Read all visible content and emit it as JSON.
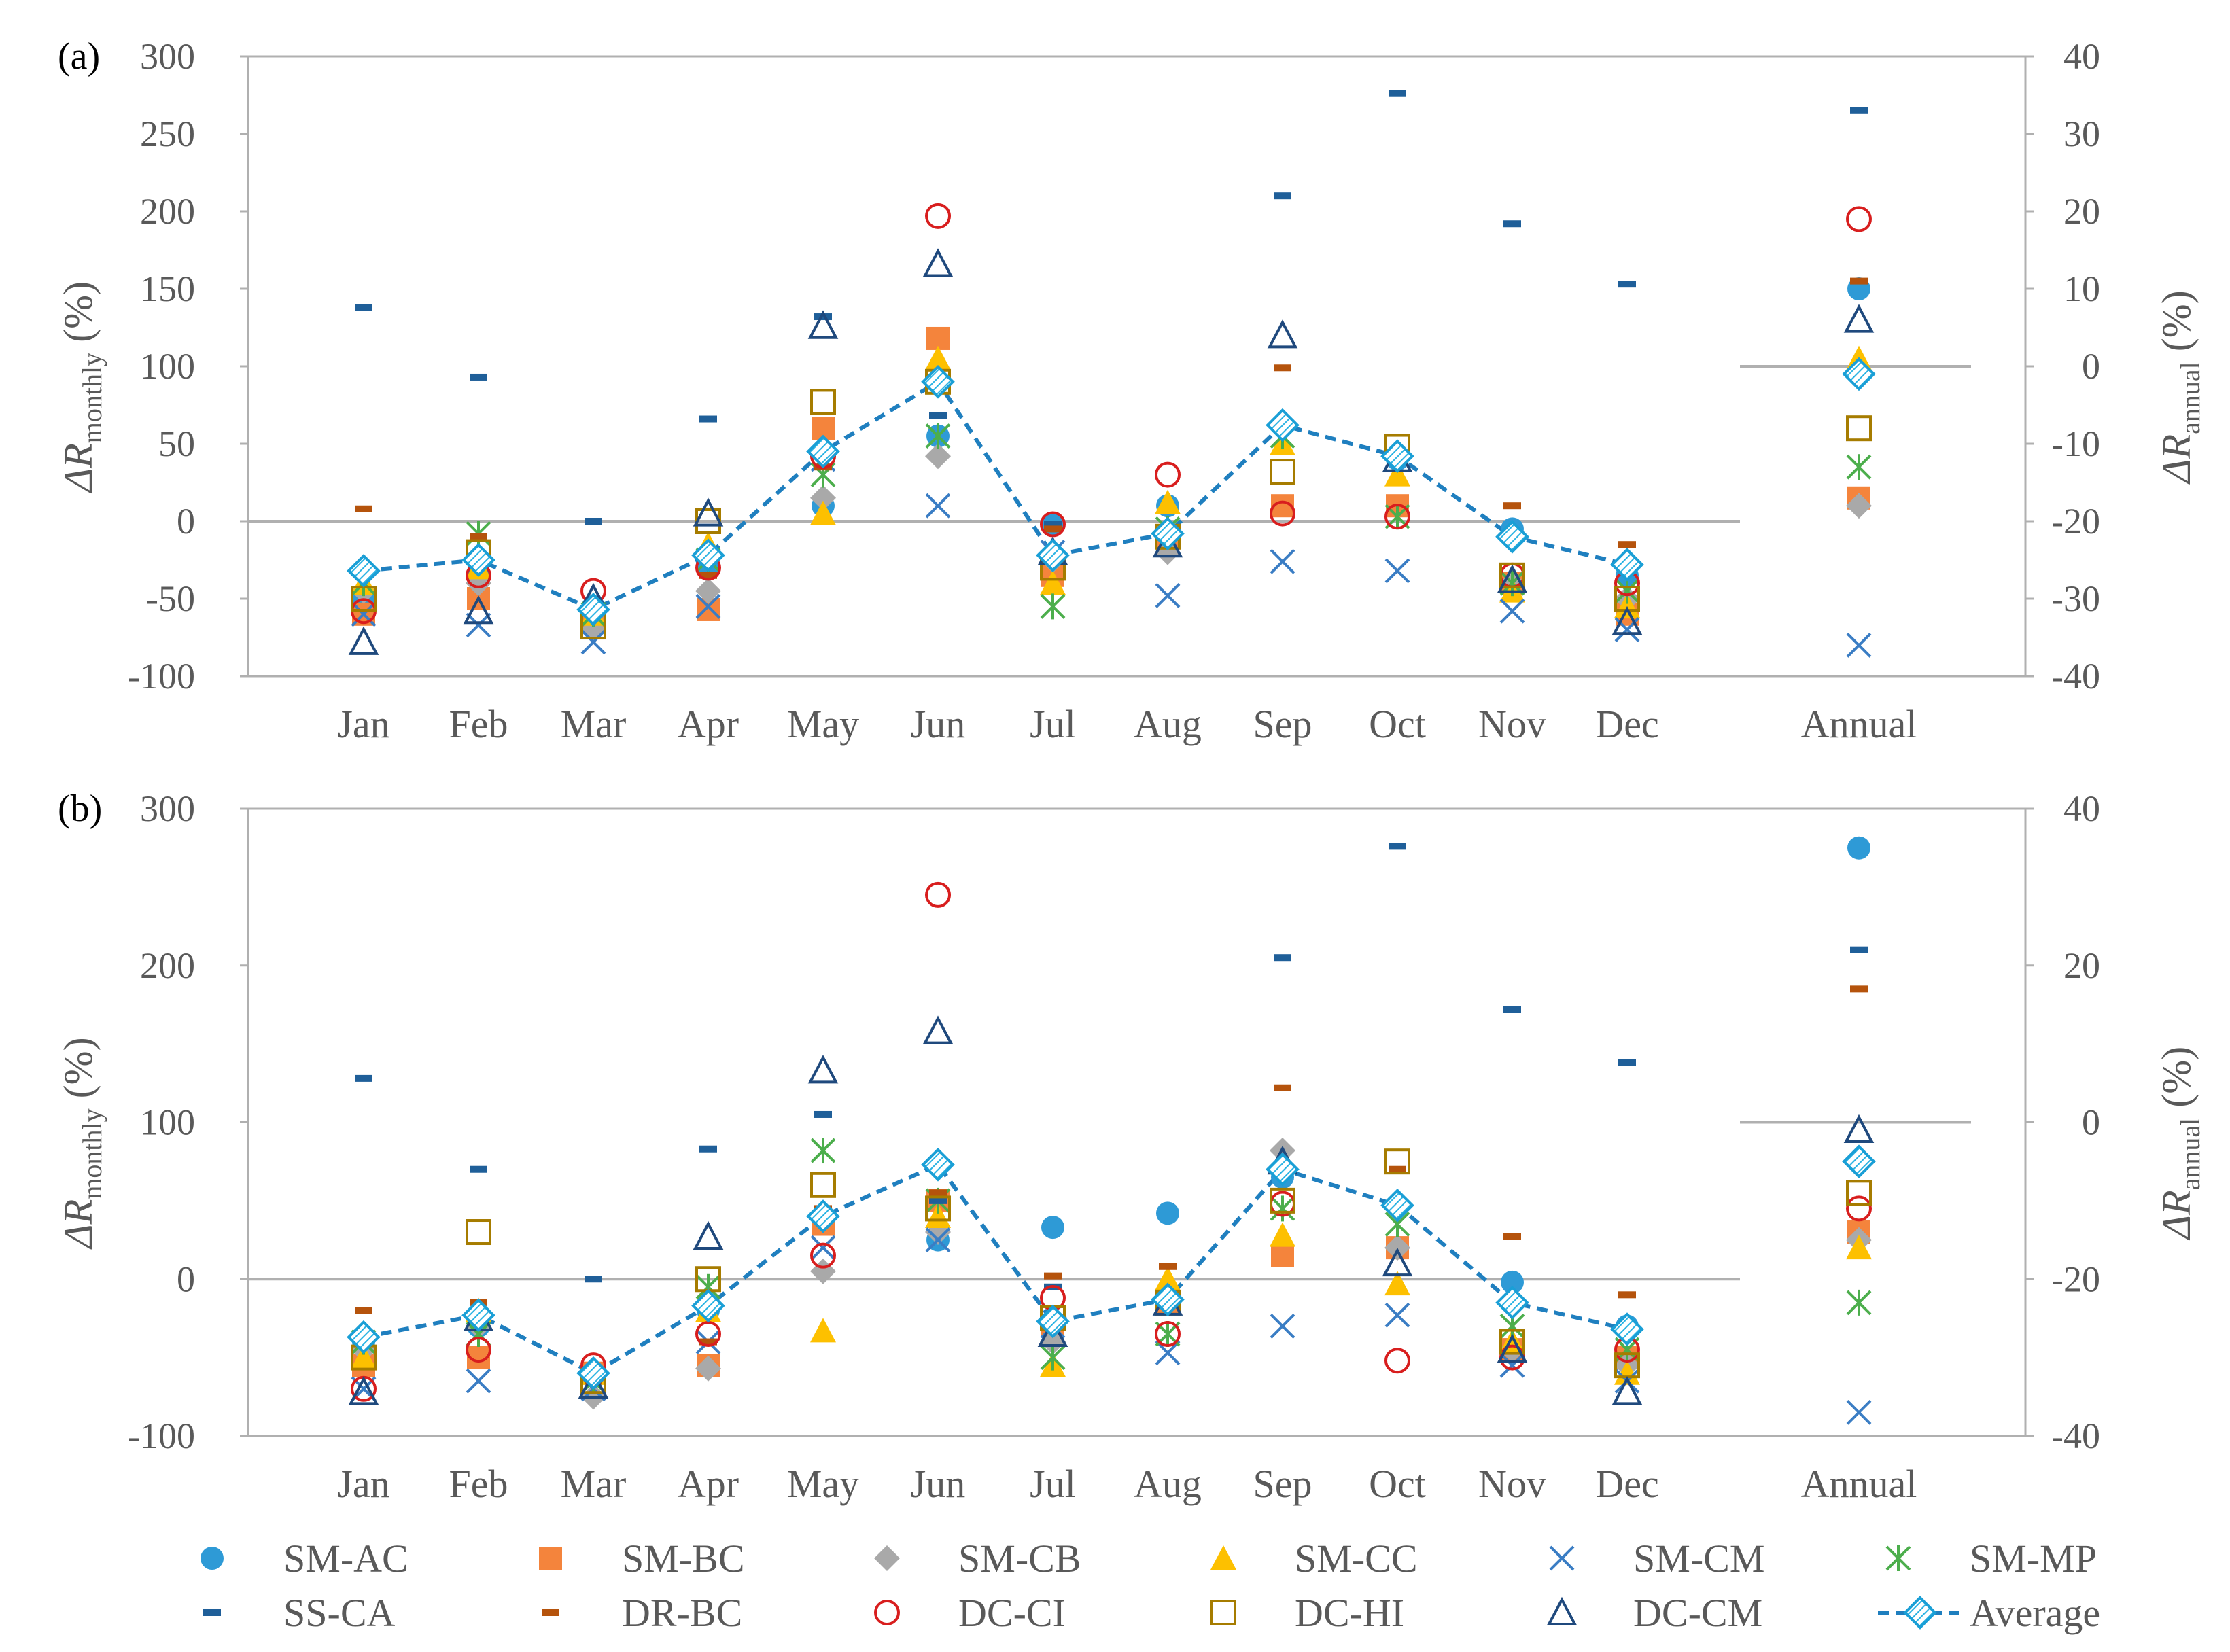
{
  "colors": {
    "SM-AC": "#2e9ad6",
    "SM-BC": "#f4843c",
    "SM-CB": "#a9a9a9",
    "SM-CC": "#fdc000",
    "SM-CM": "#3a7dc4",
    "SM-MP": "#4cae4c",
    "SS-CA": "#1f5f99",
    "DR-BC": "#b5530c",
    "DC-CI": "#d81e1e",
    "DC-HI": "#a67c00",
    "DC-CM": "#1f497d",
    "Average": "#1f7fbf",
    "axis": "#b0b0b0",
    "tick_text": "#595959",
    "zero_line": "#b0b0b0"
  },
  "chart_data": [
    {
      "type": "scatter",
      "panel_label": "(a)",
      "categories": [
        "Jan",
        "Feb",
        "Mar",
        "Apr",
        "May",
        "Jun",
        "Jul",
        "Aug",
        "Sep",
        "Oct",
        "Nov",
        "Dec"
      ],
      "annual_label": "Annual",
      "ylabel_main": "ΔR",
      "ylabel_sub": "monthly",
      "ylabel_unit": "(%)",
      "ylabel2_main": "ΔR",
      "ylabel2_sub": "annual",
      "ylabel2_unit": "(%)",
      "ylim": [
        -100,
        300
      ],
      "yticks": [
        -100,
        -50,
        0,
        50,
        100,
        150,
        200,
        250,
        300
      ],
      "y2lim": [
        -40,
        40
      ],
      "y2ticks": [
        -40,
        -30,
        -20,
        -10,
        0,
        10,
        20,
        30,
        40
      ],
      "series": [
        {
          "name": "SM-AC",
          "values": [
            -50,
            -35,
            -55,
            -30,
            10,
            55,
            -2,
            10,
            62,
            40,
            -5,
            -35
          ],
          "annual": 10
        },
        {
          "name": "SM-BC",
          "values": [
            -60,
            -50,
            -65,
            -57,
            60,
            118,
            -35,
            -15,
            10,
            10,
            -40,
            -60
          ],
          "annual": -17
        },
        {
          "name": "SM-CB",
          "values": [
            -45,
            -40,
            -70,
            -45,
            15,
            42,
            -25,
            -20,
            60,
            42,
            -40,
            -50
          ],
          "annual": -18
        },
        {
          "name": "SM-CC",
          "values": [
            -40,
            -30,
            -60,
            -15,
            5,
            105,
            -40,
            12,
            50,
            30,
            -45,
            -55
          ],
          "annual": 1
        },
        {
          "name": "SM-CM",
          "values": [
            -60,
            -67,
            -78,
            -55,
            40,
            10,
            -20,
            -48,
            -26,
            -32,
            -58,
            -70
          ],
          "annual": -36
        },
        {
          "name": "SM-MP",
          "values": [
            -40,
            -8,
            -60,
            -25,
            30,
            55,
            -55,
            -5,
            55,
            3,
            -40,
            -45
          ],
          "annual": -13
        },
        {
          "name": "SS-CA",
          "values": [
            138,
            93,
            0,
            66,
            132,
            68,
            -2,
            -5,
            210,
            276,
            192,
            153
          ],
          "annual": 33
        },
        {
          "name": "DR-BC",
          "values": [
            8,
            -10,
            -55,
            -35,
            35,
            90,
            -5,
            -8,
            99,
            40,
            10,
            -15
          ],
          "annual": 11
        },
        {
          "name": "DC-CI",
          "values": [
            -58,
            -35,
            -45,
            -30,
            42,
            197,
            -2,
            30,
            5,
            3,
            -35,
            -40
          ],
          "annual": 19
        },
        {
          "name": "DC-HI",
          "values": [
            -50,
            -20,
            -68,
            0,
            77,
            90,
            -30,
            -10,
            32,
            48,
            -35,
            -50
          ],
          "annual": -8
        },
        {
          "name": "DC-CM",
          "values": [
            -78,
            -58,
            -50,
            5,
            126,
            166,
            -20,
            -15,
            120,
            40,
            -38,
            -65
          ],
          "annual": 6
        },
        {
          "name": "Average",
          "values": [
            -32,
            -25,
            -57,
            -22,
            45,
            90,
            -22,
            -8,
            62,
            42,
            -10,
            -28
          ],
          "annual": -1
        }
      ]
    },
    {
      "type": "scatter",
      "panel_label": "(b)",
      "categories": [
        "Jan",
        "Feb",
        "Mar",
        "Apr",
        "May",
        "Jun",
        "Jul",
        "Aug",
        "Sep",
        "Oct",
        "Nov",
        "Dec"
      ],
      "annual_label": "Annual",
      "ylabel_main": "ΔR",
      "ylabel_sub": "monthly",
      "ylabel_unit": "(%)",
      "ylabel2_main": "ΔR",
      "ylabel2_sub": "annual",
      "ylabel2_unit": "(%)",
      "ylim": [
        -100,
        300
      ],
      "yticks": [
        -100,
        0,
        100,
        200,
        300
      ],
      "y2lim": [
        -40,
        40
      ],
      "y2ticks": [
        -40,
        -20,
        0,
        20,
        40
      ],
      "series": [
        {
          "name": "SM-AC",
          "values": [
            -40,
            -30,
            -60,
            -20,
            40,
            25,
            33,
            42,
            65,
            47,
            -2,
            -30
          ],
          "annual": 35
        },
        {
          "name": "SM-BC",
          "values": [
            -55,
            -50,
            -60,
            -55,
            35,
            50,
            -30,
            -15,
            15,
            20,
            -45,
            -50
          ],
          "annual": -14
        },
        {
          "name": "SM-CB",
          "values": [
            -45,
            -30,
            -75,
            -57,
            5,
            30,
            -40,
            -10,
            82,
            20,
            -45,
            -55
          ],
          "annual": -15
        },
        {
          "name": "SM-CC",
          "values": [
            -50,
            -20,
            -60,
            -20,
            -33,
            40,
            -55,
            0,
            28,
            -3,
            -40,
            -60
          ],
          "annual": -16
        },
        {
          "name": "SM-CM",
          "values": [
            -70,
            -65,
            -70,
            -40,
            20,
            25,
            -30,
            -47,
            -30,
            -23,
            -55,
            -65
          ],
          "annual": -37
        },
        {
          "name": "SM-MP",
          "values": [
            -40,
            -35,
            -65,
            -5,
            82,
            50,
            -50,
            -35,
            45,
            35,
            -30,
            -45
          ],
          "annual": -23
        },
        {
          "name": "SS-CA",
          "values": [
            128,
            70,
            0,
            83,
            105,
            50,
            -5,
            -10,
            205,
            276,
            172,
            138
          ],
          "annual": 22
        },
        {
          "name": "DR-BC",
          "values": [
            -20,
            -15,
            -65,
            -40,
            45,
            55,
            2,
            8,
            122,
            70,
            27,
            -10
          ],
          "annual": 17
        },
        {
          "name": "DC-CI",
          "values": [
            -70,
            -45,
            -55,
            -35,
            15,
            245,
            -12,
            -35,
            48,
            -52,
            -50,
            -45
          ],
          "annual": -11
        },
        {
          "name": "DC-HI",
          "values": [
            -50,
            30,
            -65,
            0,
            60,
            45,
            -25,
            -15,
            50,
            75,
            -40,
            -55
          ],
          "annual": -9
        },
        {
          "name": "DC-CM",
          "values": [
            -72,
            -25,
            -68,
            27,
            133,
            158,
            -35,
            -15,
            75,
            10,
            -45,
            -72
          ],
          "annual": -1
        },
        {
          "name": "Average",
          "values": [
            -37,
            -23,
            -60,
            -17,
            40,
            73,
            -27,
            -13,
            70,
            47,
            -15,
            -32
          ],
          "annual": -5
        }
      ]
    }
  ],
  "legend": [
    {
      "name": "SM-AC",
      "label": "SM-AC",
      "marker": "circle"
    },
    {
      "name": "SM-BC",
      "label": "SM-BC",
      "marker": "square"
    },
    {
      "name": "SM-CB",
      "label": "SM-CB",
      "marker": "diamond"
    },
    {
      "name": "SM-CC",
      "label": "SM-CC",
      "marker": "triangle"
    },
    {
      "name": "SM-CM",
      "label": "SM-CM",
      "marker": "x"
    },
    {
      "name": "SM-MP",
      "label": "SM-MP",
      "marker": "star"
    },
    {
      "name": "SS-CA",
      "label": "SS-CA",
      "marker": "dash"
    },
    {
      "name": "DR-BC",
      "label": "DR-BC",
      "marker": "dash"
    },
    {
      "name": "DC-CI",
      "label": "DC-CI",
      "marker": "open-circle"
    },
    {
      "name": "DC-HI",
      "label": "DC-HI",
      "marker": "open-square"
    },
    {
      "name": "DC-CM",
      "label": "DC-CM",
      "marker": "open-triangle"
    },
    {
      "name": "Average",
      "label": "Average",
      "marker": "average"
    }
  ]
}
